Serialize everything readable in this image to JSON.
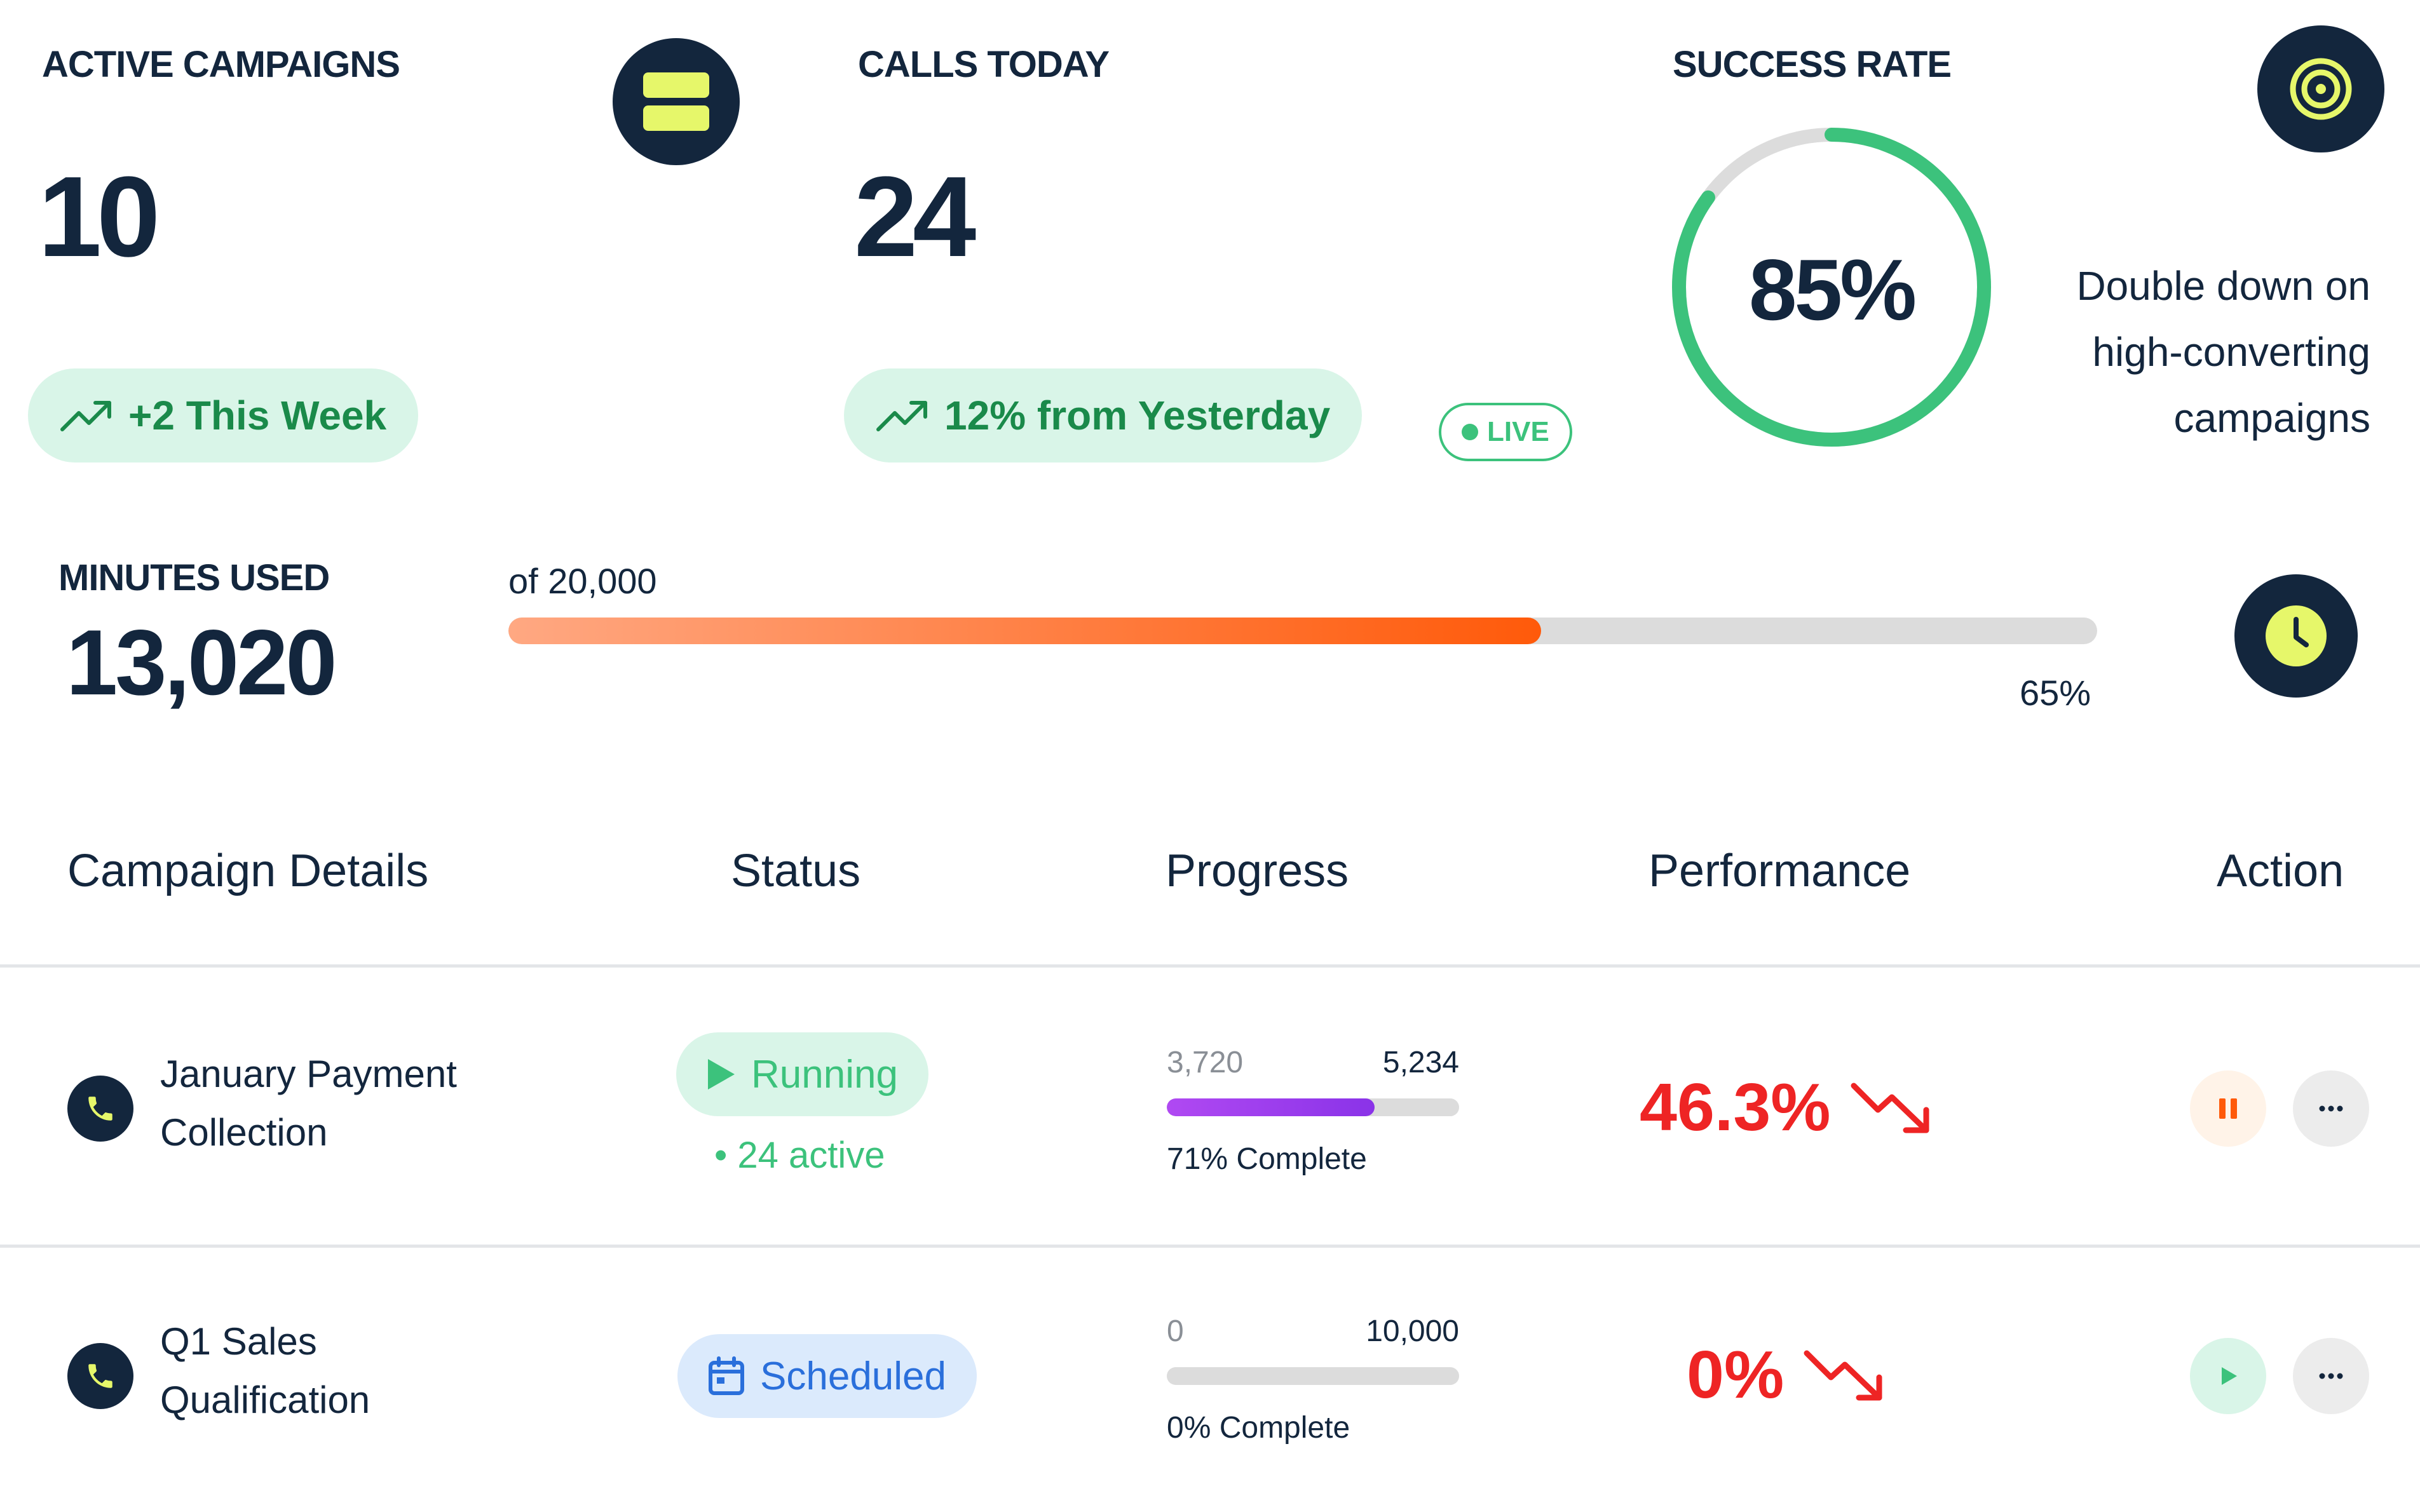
{
  "stats": {
    "active_campaigns": {
      "title": "ACTIVE CAMPAIGNS",
      "value": "10",
      "trend": "+2 This Week",
      "icon": "layers-icon"
    },
    "calls_today": {
      "title": "CALLS TODAY",
      "value": "24",
      "trend": "12% from Yesterday",
      "badge": "LIVE"
    },
    "success_rate": {
      "title": "SUCCESS RATE",
      "value": "85%",
      "ring_fraction": 0.85,
      "note_line1": "Double down on",
      "note_line2": "high-converting",
      "note_line3": "campaigns",
      "icon": "target-icon"
    }
  },
  "minutes": {
    "title": "MINUTES USED",
    "value": "13,020",
    "of_label": "of 20,000",
    "percent_label": "65%",
    "fill_fraction": 0.65,
    "icon": "clock-icon"
  },
  "table": {
    "headers": [
      "Campaign Details",
      "Status",
      "Progress",
      "Performance",
      "Action"
    ],
    "rows": [
      {
        "name_line1": "January Payment",
        "name_line2": "Collection",
        "status": "Running",
        "status_sub": "• 24 active",
        "progress_done": "3,720",
        "progress_total": "5,234",
        "progress_fraction": 0.71,
        "progress_label": "71% Complete",
        "performance": "46.3%",
        "action": "pause"
      },
      {
        "name_line1": "Q1 Sales",
        "name_line2": "Qualification",
        "status": "Scheduled",
        "status_sub": "",
        "progress_done": "0",
        "progress_total": "10,000",
        "progress_fraction": 0.0,
        "progress_label": "0% Complete",
        "performance": "0%",
        "action": "play"
      }
    ]
  },
  "colors": {
    "navy": "#13263d",
    "lime": "#e6f76a",
    "green": "#3cc27c",
    "red": "#ee2424",
    "orange": "#ff5a0a",
    "purple": "#9b3cf0"
  }
}
